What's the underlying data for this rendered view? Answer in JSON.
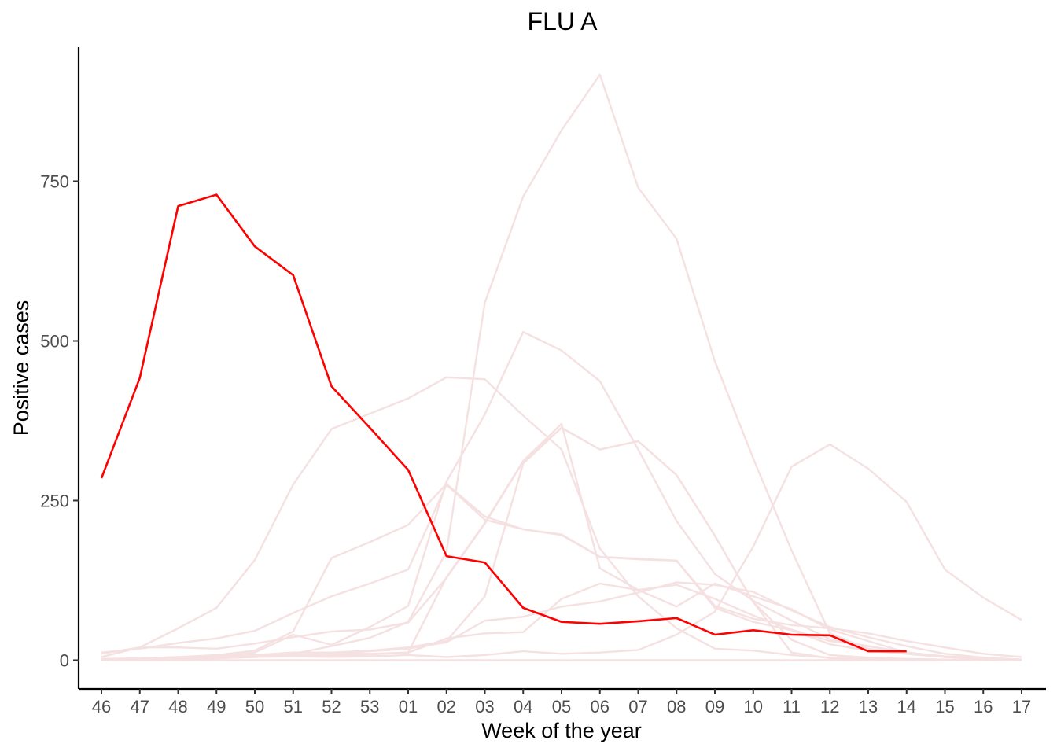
{
  "chart_data": {
    "type": "line",
    "title": "FLU A",
    "xlabel": "Week of the year",
    "ylabel": "Positive cases",
    "categories": [
      "46",
      "47",
      "48",
      "49",
      "50",
      "51",
      "52",
      "53",
      "01",
      "02",
      "03",
      "04",
      "05",
      "06",
      "07",
      "08",
      "09",
      "10",
      "11",
      "12",
      "13",
      "14",
      "15",
      "16",
      "17"
    ],
    "yticks": [
      0,
      250,
      500,
      750
    ],
    "ylim": [
      -45,
      960
    ],
    "grid": false,
    "legend": "none",
    "colors": {
      "highlight": "#ff0000",
      "background": "#f5e1e1"
    },
    "series": [
      {
        "highlight": true,
        "values": [
          285,
          442,
          711,
          729,
          648,
          603,
          429,
          364,
          298,
          163,
          153,
          82,
          60,
          57,
          61,
          66,
          40,
          47,
          40,
          39,
          14,
          14,
          null,
          null,
          null
        ]
      },
      {
        "highlight": false,
        "values": [
          1,
          2,
          5,
          8,
          15,
          45,
          160,
          185,
          212,
          276,
          225,
          205,
          197,
          162,
          159,
          156,
          82,
          60,
          47,
          25,
          15,
          10,
          5,
          2,
          1
        ]
      },
      {
        "highlight": false,
        "values": [
          0,
          1,
          3,
          5,
          7,
          10,
          22,
          35,
          60,
          170,
          560,
          726,
          830,
          917,
          740,
          660,
          468,
          316,
          172,
          42,
          18,
          10,
          5,
          2,
          1
        ]
      },
      {
        "highlight": false,
        "values": [
          2,
          3,
          5,
          6,
          8,
          12,
          12,
          15,
          20,
          30,
          100,
          308,
          364,
          330,
          343,
          290,
          195,
          91,
          12,
          3,
          2,
          1,
          0,
          0,
          0
        ]
      },
      {
        "highlight": false,
        "values": [
          5,
          20,
          50,
          82,
          157,
          275,
          362,
          386,
          410,
          443,
          440,
          383,
          330,
          175,
          100,
          50,
          18,
          15,
          8,
          4,
          2,
          1,
          0,
          0,
          0
        ]
      },
      {
        "highlight": false,
        "values": [
          1,
          2,
          4,
          6,
          12,
          40,
          24,
          52,
          85,
          280,
          385,
          514,
          485,
          437,
          330,
          218,
          135,
          93,
          62,
          33,
          22,
          12,
          5,
          2,
          1
        ]
      },
      {
        "highlight": false,
        "values": [
          0,
          1,
          2,
          3,
          5,
          8,
          10,
          10,
          12,
          130,
          215,
          312,
          370,
          144,
          110,
          84,
          120,
          100,
          80,
          48,
          30,
          12,
          5,
          2,
          1
        ]
      },
      {
        "highlight": false,
        "values": [
          1,
          2,
          3,
          4,
          6,
          6,
          5,
          6,
          8,
          5,
          8,
          14,
          10,
          12,
          16,
          40,
          76,
          178,
          303,
          338,
          300,
          248,
          142,
          98,
          63
        ]
      },
      {
        "highlight": false,
        "values": [
          10,
          20,
          20,
          18,
          26,
          36,
          45,
          48,
          59,
          129,
          214,
          311,
          364,
          330,
          343,
          290,
          195,
          91,
          32,
          8,
          4,
          2,
          1,
          0,
          0
        ]
      },
      {
        "highlight": false,
        "values": [
          12,
          18,
          27,
          34,
          46,
          74,
          100,
          120,
          142,
          275,
          220,
          205,
          196,
          162,
          158,
          156,
          85,
          65,
          55,
          50,
          42,
          30,
          20,
          10,
          5
        ]
      },
      {
        "highlight": false,
        "values": [
          0,
          1,
          2,
          3,
          6,
          8,
          10,
          14,
          18,
          28,
          62,
          68,
          84,
          92,
          106,
          122,
          118,
          107,
          78,
          52,
          36,
          22,
          10,
          4,
          1
        ]
      },
      {
        "highlight": false,
        "values": [
          1,
          2,
          2,
          3,
          5,
          6,
          7,
          9,
          12,
          34,
          42,
          44,
          96,
          120,
          110,
          118,
          96,
          70,
          48,
          30,
          22,
          12,
          6,
          3,
          1
        ]
      },
      {
        "highlight": false,
        "values": [
          0,
          0,
          0,
          0,
          0,
          0,
          0,
          0,
          0,
          0,
          0,
          0,
          0,
          0,
          0,
          0,
          0,
          0,
          0,
          0,
          0,
          0,
          0,
          0,
          0
        ]
      }
    ]
  }
}
